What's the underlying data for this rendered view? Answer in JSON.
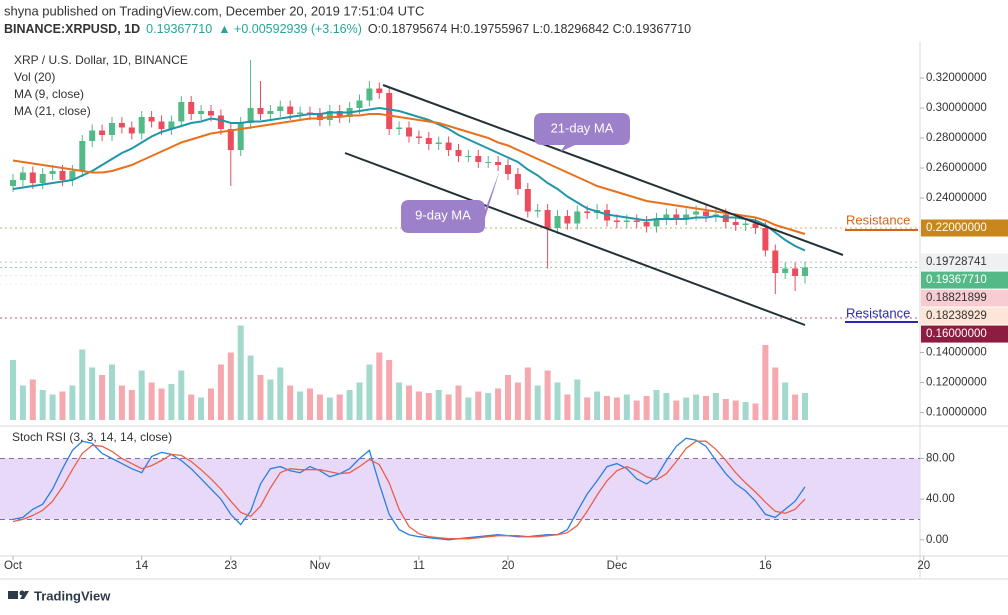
{
  "header": {
    "published": "shyna published on TradingView.com, December 20, 2019 17:51:04 UTC",
    "symbol": "BINANCE:XRPUSD, 1D",
    "price": "0.19367710",
    "change": "▲ +0.00592939 (+3.16%)",
    "ohlc": "O:0.18795674 H:0.19755967 L:0.18296842 C:0.19367710"
  },
  "footer": "TradingView",
  "chart_data": {
    "type": "candlestick",
    "title": "XRP / U.S. Dollar, 1D, BINANCE",
    "x": [
      "2019-10-01",
      "2019-10-02",
      "2019-10-03",
      "2019-10-04",
      "2019-10-05",
      "2019-10-06",
      "2019-10-07",
      "2019-10-08",
      "2019-10-09",
      "2019-10-10",
      "2019-10-11",
      "2019-10-12",
      "2019-10-13",
      "2019-10-14",
      "2019-10-15",
      "2019-10-16",
      "2019-10-17",
      "2019-10-18",
      "2019-10-19",
      "2019-10-20",
      "2019-10-21",
      "2019-10-22",
      "2019-10-23",
      "2019-10-24",
      "2019-10-25",
      "2019-10-26",
      "2019-10-27",
      "2019-10-28",
      "2019-10-29",
      "2019-10-30",
      "2019-10-31",
      "2019-11-01",
      "2019-11-02",
      "2019-11-03",
      "2019-11-04",
      "2019-11-05",
      "2019-11-06",
      "2019-11-07",
      "2019-11-08",
      "2019-11-09",
      "2019-11-10",
      "2019-11-11",
      "2019-11-12",
      "2019-11-13",
      "2019-11-14",
      "2019-11-15",
      "2019-11-16",
      "2019-11-17",
      "2019-11-18",
      "2019-11-19",
      "2019-11-20",
      "2019-11-21",
      "2019-11-22",
      "2019-11-23",
      "2019-11-24",
      "2019-11-25",
      "2019-11-26",
      "2019-11-27",
      "2019-11-28",
      "2019-11-29",
      "2019-11-30",
      "2019-12-01",
      "2019-12-02",
      "2019-12-03",
      "2019-12-04",
      "2019-12-05",
      "2019-12-06",
      "2019-12-07",
      "2019-12-08",
      "2019-12-09",
      "2019-12-10",
      "2019-12-11",
      "2019-12-12",
      "2019-12-13",
      "2019-12-14",
      "2019-12-15",
      "2019-12-16",
      "2019-12-17",
      "2019-12-18",
      "2019-12-19",
      "2019-12-20"
    ],
    "open": [
      0.248,
      0.252,
      0.257,
      0.25,
      0.256,
      0.258,
      0.252,
      0.258,
      0.278,
      0.285,
      0.282,
      0.29,
      0.287,
      0.283,
      0.294,
      0.291,
      0.286,
      0.291,
      0.304,
      0.296,
      0.298,
      0.295,
      0.286,
      0.272,
      0.29,
      0.3,
      0.296,
      0.298,
      0.301,
      0.296,
      0.297,
      0.296,
      0.292,
      0.298,
      0.294,
      0.3,
      0.305,
      0.313,
      0.31,
      0.286,
      0.287,
      0.281,
      0.28,
      0.276,
      0.277,
      0.272,
      0.268,
      0.268,
      0.264,
      0.264,
      0.262,
      0.256,
      0.246,
      0.231,
      0.232,
      0.22,
      0.228,
      0.223,
      0.231,
      0.23,
      0.232,
      0.225,
      0.224,
      0.225,
      0.224,
      0.221,
      0.226,
      0.229,
      0.226,
      0.229,
      0.231,
      0.228,
      0.229,
      0.224,
      0.222,
      0.223,
      0.22,
      0.205,
      0.19,
      0.193,
      0.188
    ],
    "high": [
      0.256,
      0.261,
      0.261,
      0.26,
      0.262,
      0.262,
      0.262,
      0.282,
      0.289,
      0.289,
      0.294,
      0.294,
      0.291,
      0.298,
      0.298,
      0.295,
      0.295,
      0.308,
      0.308,
      0.302,
      0.302,
      0.299,
      0.29,
      0.294,
      0.332,
      0.318,
      0.302,
      0.305,
      0.305,
      0.301,
      0.301,
      0.3,
      0.302,
      0.302,
      0.304,
      0.309,
      0.318,
      0.317,
      0.314,
      0.291,
      0.291,
      0.285,
      0.284,
      0.281,
      0.281,
      0.276,
      0.272,
      0.272,
      0.268,
      0.268,
      0.266,
      0.26,
      0.25,
      0.236,
      0.236,
      0.232,
      0.232,
      0.235,
      0.235,
      0.236,
      0.236,
      0.229,
      0.229,
      0.229,
      0.228,
      0.23,
      0.233,
      0.233,
      0.233,
      0.235,
      0.235,
      0.233,
      0.233,
      0.228,
      0.227,
      0.227,
      0.224,
      0.209,
      0.197,
      0.197,
      0.1976
    ],
    "low": [
      0.244,
      0.248,
      0.246,
      0.246,
      0.252,
      0.248,
      0.248,
      0.254,
      0.274,
      0.278,
      0.278,
      0.283,
      0.279,
      0.279,
      0.287,
      0.282,
      0.282,
      0.287,
      0.292,
      0.292,
      0.291,
      0.282,
      0.248,
      0.268,
      0.286,
      0.292,
      0.292,
      0.294,
      0.292,
      0.292,
      0.292,
      0.288,
      0.288,
      0.29,
      0.29,
      0.296,
      0.301,
      0.306,
      0.282,
      0.282,
      0.277,
      0.276,
      0.272,
      0.272,
      0.268,
      0.264,
      0.264,
      0.26,
      0.26,
      0.258,
      0.252,
      0.242,
      0.227,
      0.227,
      0.193,
      0.216,
      0.219,
      0.219,
      0.226,
      0.226,
      0.221,
      0.22,
      0.22,
      0.22,
      0.217,
      0.217,
      0.222,
      0.222,
      0.222,
      0.225,
      0.224,
      0.224,
      0.22,
      0.218,
      0.218,
      0.216,
      0.201,
      0.176,
      0.186,
      0.178,
      0.183
    ],
    "close": [
      0.252,
      0.257,
      0.25,
      0.256,
      0.258,
      0.252,
      0.258,
      0.278,
      0.285,
      0.282,
      0.29,
      0.287,
      0.283,
      0.294,
      0.291,
      0.286,
      0.291,
      0.304,
      0.296,
      0.298,
      0.295,
      0.286,
      0.272,
      0.29,
      0.3,
      0.296,
      0.298,
      0.301,
      0.296,
      0.297,
      0.296,
      0.292,
      0.298,
      0.294,
      0.3,
      0.305,
      0.313,
      0.31,
      0.286,
      0.287,
      0.281,
      0.28,
      0.276,
      0.277,
      0.272,
      0.268,
      0.268,
      0.264,
      0.264,
      0.262,
      0.256,
      0.246,
      0.231,
      0.232,
      0.22,
      0.228,
      0.223,
      0.231,
      0.23,
      0.232,
      0.225,
      0.224,
      0.225,
      0.224,
      0.221,
      0.226,
      0.229,
      0.226,
      0.229,
      0.231,
      0.228,
      0.229,
      0.224,
      0.222,
      0.223,
      0.22,
      0.205,
      0.19,
      0.193,
      0.188,
      0.1937
    ],
    "colors": {
      "up": "#53b987",
      "down": "#eb4d5c",
      "volume_up": "#a3d9cd",
      "volume_down": "#f5a8ae"
    },
    "ylim": [
      0.092,
      0.342
    ],
    "yticks": [
      {
        "value": 0.32,
        "label": "0.32000000"
      },
      {
        "value": 0.3,
        "label": "0.30000000"
      },
      {
        "value": 0.28,
        "label": "0.28000000"
      },
      {
        "value": 0.26,
        "label": "0.26000000"
      },
      {
        "value": 0.24,
        "label": "0.24000000"
      }
    ],
    "xticks": [
      {
        "value": "2019-10-01",
        "label": "Oct"
      },
      {
        "value": "2019-10-14",
        "label": "14"
      },
      {
        "value": "2019-10-23",
        "label": "23"
      },
      {
        "value": "2019-11-01",
        "label": "Nov"
      },
      {
        "value": "2019-11-11",
        "label": "11"
      },
      {
        "value": "2019-11-20",
        "label": "20"
      },
      {
        "value": "2019-12-01",
        "label": "Dec"
      },
      {
        "value": "2019-12-16",
        "label": "16"
      },
      {
        "value": "2020-01-01",
        "label": "20"
      }
    ],
    "volume": {
      "name": "Vol (20)",
      "ylim": [
        0.095,
        0.345
      ],
      "yticks": [
        {
          "value": 0.14,
          "label": "0.14000000"
        },
        {
          "value": 0.12,
          "label": "0.12000000"
        },
        {
          "value": 0.1,
          "label": "0.10000000"
        }
      ],
      "values": [
        0.135,
        0.118,
        0.122,
        0.115,
        0.112,
        0.114,
        0.118,
        0.142,
        0.13,
        0.125,
        0.132,
        0.118,
        0.115,
        0.128,
        0.12,
        0.116,
        0.119,
        0.128,
        0.112,
        0.11,
        0.116,
        0.132,
        0.14,
        0.158,
        0.138,
        0.125,
        0.122,
        0.13,
        0.118,
        0.114,
        0.116,
        0.112,
        0.11,
        0.112,
        0.115,
        0.12,
        0.132,
        0.14,
        0.135,
        0.12,
        0.118,
        0.114,
        0.113,
        0.115,
        0.112,
        0.118,
        0.11,
        0.114,
        0.113,
        0.116,
        0.125,
        0.12,
        0.13,
        0.118,
        0.128,
        0.12,
        0.112,
        0.122,
        0.11,
        0.114,
        0.111,
        0.11,
        0.112,
        0.108,
        0.111,
        0.115,
        0.113,
        0.108,
        0.11,
        0.112,
        0.111,
        0.113,
        0.109,
        0.108,
        0.107,
        0.106,
        0.145,
        0.13,
        0.12,
        0.112,
        0.113
      ]
    },
    "series": [
      {
        "name": "MA (9, close)",
        "color": "#2196a8",
        "values": [
          0.246,
          0.247,
          0.248,
          0.249,
          0.25,
          0.251,
          0.252,
          0.255,
          0.258,
          0.262,
          0.266,
          0.27,
          0.273,
          0.277,
          0.281,
          0.284,
          0.286,
          0.288,
          0.29,
          0.291,
          0.293,
          0.292,
          0.29,
          0.29,
          0.291,
          0.291,
          0.292,
          0.293,
          0.294,
          0.295,
          0.296,
          0.296,
          0.297,
          0.297,
          0.297,
          0.298,
          0.299,
          0.3,
          0.299,
          0.298,
          0.296,
          0.294,
          0.292,
          0.289,
          0.286,
          0.282,
          0.279,
          0.276,
          0.273,
          0.27,
          0.267,
          0.264,
          0.259,
          0.255,
          0.25,
          0.246,
          0.241,
          0.237,
          0.233,
          0.231,
          0.229,
          0.228,
          0.227,
          0.226,
          0.225,
          0.226,
          0.226,
          0.226,
          0.226,
          0.227,
          0.227,
          0.228,
          0.227,
          0.227,
          0.226,
          0.225,
          0.222,
          0.217,
          0.212,
          0.208,
          0.205
        ]
      },
      {
        "name": "MA (21, close)",
        "color": "#e8711e",
        "values": [
          0.265,
          0.264,
          0.263,
          0.262,
          0.261,
          0.26,
          0.259,
          0.258,
          0.257,
          0.257,
          0.258,
          0.26,
          0.262,
          0.265,
          0.268,
          0.271,
          0.274,
          0.277,
          0.279,
          0.281,
          0.283,
          0.284,
          0.285,
          0.286,
          0.287,
          0.288,
          0.289,
          0.29,
          0.291,
          0.292,
          0.293,
          0.293,
          0.294,
          0.294,
          0.295,
          0.295,
          0.296,
          0.296,
          0.295,
          0.294,
          0.293,
          0.292,
          0.291,
          0.29,
          0.288,
          0.286,
          0.284,
          0.282,
          0.28,
          0.277,
          0.275,
          0.272,
          0.269,
          0.266,
          0.263,
          0.26,
          0.257,
          0.254,
          0.251,
          0.248,
          0.246,
          0.244,
          0.242,
          0.24,
          0.238,
          0.237,
          0.236,
          0.235,
          0.234,
          0.233,
          0.232,
          0.231,
          0.23,
          0.229,
          0.228,
          0.227,
          0.225,
          0.222,
          0.22,
          0.218,
          0.216
        ]
      }
    ],
    "price_labels": [
      {
        "value": 0.22,
        "label": "0.22000000",
        "color": "#c8861c",
        "text_color": "#ffffff"
      },
      {
        "value": 0.19728741,
        "label": "0.19728741",
        "color": "#eef0f2",
        "text_color": "#333333"
      },
      {
        "value": 0.1936771,
        "label": "0.19367710",
        "color": "#53b987",
        "text_color": "#ffffff"
      },
      {
        "value": 0.18821899,
        "label": "0.18821899",
        "color": "#f8cdd1",
        "text_color": "#333333"
      },
      {
        "value": 0.18238929,
        "label": "0.18238929",
        "color": "#fde6d8",
        "text_color": "#333333"
      },
      {
        "value": 0.16,
        "label": "0.16000000",
        "color": "#8e1c40",
        "text_color": "#ffffff"
      }
    ],
    "annotations": [
      {
        "text": "21-day MA",
        "color": "#9c80c9"
      },
      {
        "text": "9-day MA",
        "color": "#9c80c9"
      },
      {
        "text": "Resistance",
        "color": "#d0651e"
      },
      {
        "text": "Resistance",
        "color": "#2a2ab0"
      }
    ],
    "stoch": {
      "title": "Stoch RSI (3, 3, 14, 14, close)",
      "ylim": [
        -15,
        111
      ],
      "band": [
        20,
        80
      ],
      "band_color": "#e4d0f7",
      "yticks": [
        {
          "value": 80,
          "label": "80.00"
        },
        {
          "value": 40,
          "label": "40.00"
        },
        {
          "value": 0,
          "label": "0.00"
        }
      ],
      "series": [
        {
          "name": "K",
          "color": "#2a7fe0",
          "values": [
            20,
            22,
            30,
            35,
            50,
            70,
            88,
            97,
            95,
            85,
            80,
            75,
            70,
            66,
            82,
            86,
            84,
            78,
            70,
            60,
            50,
            40,
            25,
            15,
            28,
            55,
            70,
            72,
            68,
            66,
            72,
            68,
            62,
            65,
            70,
            80,
            88,
            55,
            25,
            10,
            5,
            3,
            2,
            1,
            0,
            1,
            2,
            3,
            4,
            5,
            4,
            3,
            3,
            4,
            5,
            5,
            10,
            28,
            45,
            58,
            72,
            75,
            70,
            60,
            55,
            62,
            78,
            92,
            100,
            98,
            92,
            78,
            65,
            55,
            48,
            38,
            25,
            22,
            30,
            38,
            52
          ]
        },
        {
          "name": "D",
          "color": "#e8604c",
          "values": [
            18,
            20,
            24,
            29,
            38,
            52,
            69,
            85,
            93,
            92,
            87,
            80,
            75,
            70,
            73,
            78,
            84,
            83,
            77,
            69,
            60,
            50,
            38,
            27,
            23,
            33,
            51,
            66,
            70,
            69,
            69,
            69,
            67,
            65,
            66,
            72,
            79,
            74,
            56,
            30,
            13,
            6,
            3,
            2,
            1,
            1,
            1,
            2,
            3,
            4,
            4,
            4,
            3,
            3,
            4,
            5,
            7,
            14,
            28,
            44,
            58,
            68,
            72,
            68,
            62,
            59,
            65,
            77,
            90,
            97,
            97,
            89,
            78,
            66,
            56,
            47,
            37,
            28,
            26,
            30,
            40
          ]
        }
      ]
    }
  }
}
